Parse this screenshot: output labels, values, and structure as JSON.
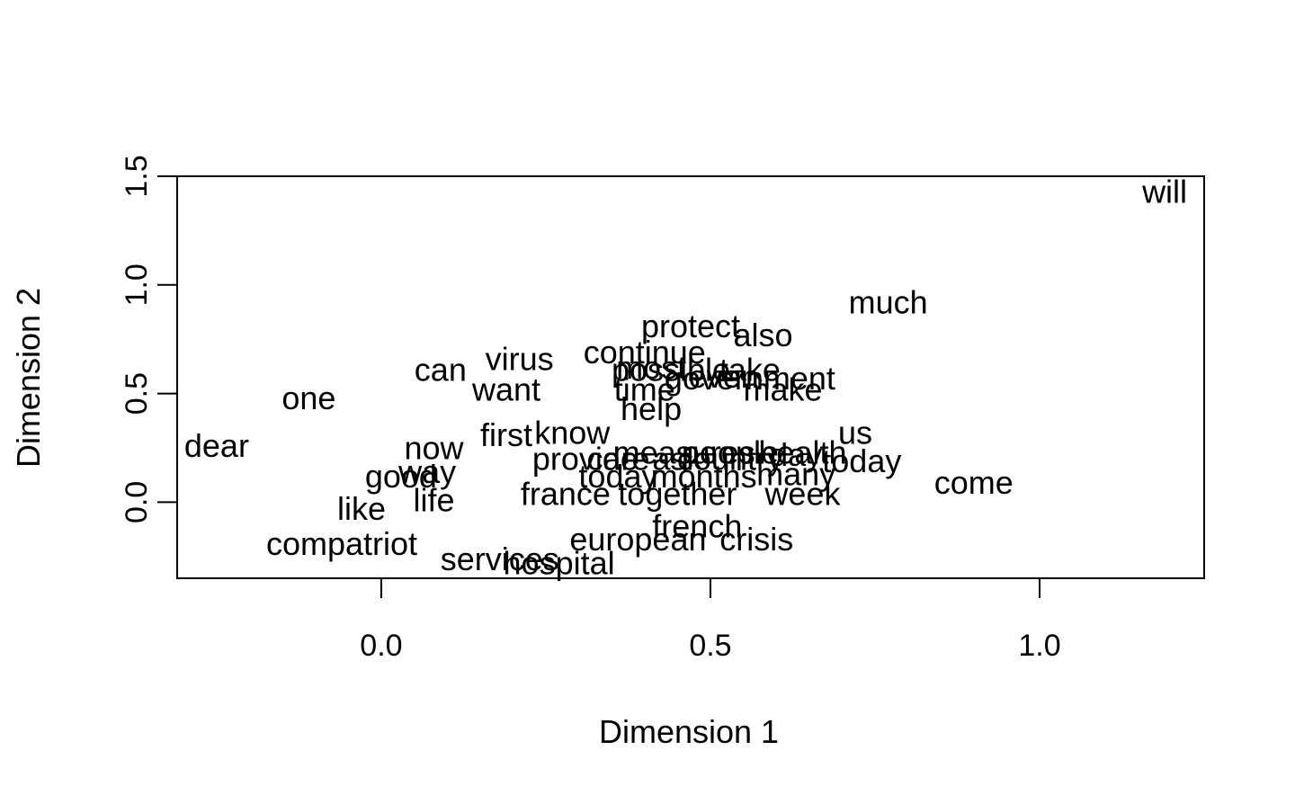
{
  "chart_data": {
    "type": "scatter",
    "title": "",
    "xlabel": "Dimension 1",
    "ylabel": "Dimension 2",
    "xlim": [
      -0.31,
      1.25
    ],
    "ylim": [
      -0.35,
      1.5
    ],
    "xticks": [
      {
        "value": 0.0,
        "label": "0.0"
      },
      {
        "value": 0.5,
        "label": "0.5"
      },
      {
        "value": 1.0,
        "label": "1.0"
      }
    ],
    "yticks": [
      {
        "value": 0.0,
        "label": "0.0"
      },
      {
        "value": 0.5,
        "label": "0.5"
      },
      {
        "value": 1.0,
        "label": "1.0"
      },
      {
        "value": 1.5,
        "label": "1.5"
      }
    ],
    "grid": false,
    "points": [
      {
        "label": "will",
        "x": 1.19,
        "y": 1.43
      },
      {
        "label": "much",
        "x": 0.77,
        "y": 0.92
      },
      {
        "label": "protect",
        "x": 0.47,
        "y": 0.81
      },
      {
        "label": "also",
        "x": 0.58,
        "y": 0.77
      },
      {
        "label": "continue",
        "x": 0.4,
        "y": 0.69
      },
      {
        "label": "virus",
        "x": 0.21,
        "y": 0.66
      },
      {
        "label": "can",
        "x": 0.09,
        "y": 0.61
      },
      {
        "label": "most",
        "x": 0.41,
        "y": 0.62
      },
      {
        "label": "possible",
        "x": 0.44,
        "y": 0.61
      },
      {
        "label": "take",
        "x": 0.56,
        "y": 0.61
      },
      {
        "label": "government",
        "x": 0.56,
        "y": 0.57
      },
      {
        "label": "even",
        "x": 0.52,
        "y": 0.58
      },
      {
        "label": "want",
        "x": 0.19,
        "y": 0.52
      },
      {
        "label": "time",
        "x": 0.4,
        "y": 0.52
      },
      {
        "label": "make",
        "x": 0.61,
        "y": 0.52
      },
      {
        "label": "one",
        "x": -0.11,
        "y": 0.48
      },
      {
        "label": "help",
        "x": 0.41,
        "y": 0.43
      },
      {
        "label": "first",
        "x": 0.19,
        "y": 0.31
      },
      {
        "label": "know",
        "x": 0.29,
        "y": 0.32
      },
      {
        "label": "us",
        "x": 0.72,
        "y": 0.32
      },
      {
        "label": "dear",
        "x": -0.25,
        "y": 0.26
      },
      {
        "label": "now",
        "x": 0.08,
        "y": 0.25
      },
      {
        "label": "measures",
        "x": 0.46,
        "y": 0.23
      },
      {
        "label": "people",
        "x": 0.53,
        "y": 0.23
      },
      {
        "label": "health",
        "x": 0.64,
        "y": 0.23
      },
      {
        "label": "day",
        "x": 0.63,
        "y": 0.22
      },
      {
        "label": "first",
        "x": 0.0,
        "y": 0.0,
        "_omit": true
      },
      {
        "label": "provide",
        "x": 0.31,
        "y": 0.2
      },
      {
        "label": "care",
        "x": 0.36,
        "y": 0.2
      },
      {
        "label": "ask",
        "x": 0.45,
        "y": 0.2
      },
      {
        "label": "country",
        "x": 0.53,
        "y": 0.2
      },
      {
        "label": "today",
        "x": 0.73,
        "y": 0.19
      },
      {
        "label": "way",
        "x": 0.07,
        "y": 0.14
      },
      {
        "label": "good",
        "x": 0.03,
        "y": 0.12
      },
      {
        "label": "today",
        "x": 0.36,
        "y": 0.12
      },
      {
        "label": "months",
        "x": 0.49,
        "y": 0.12
      },
      {
        "label": "many",
        "x": 0.63,
        "y": 0.13
      },
      {
        "label": "life",
        "x": 0.08,
        "y": 0.01
      },
      {
        "label": "france",
        "x": 0.28,
        "y": 0.04
      },
      {
        "label": "together",
        "x": 0.45,
        "y": 0.04
      },
      {
        "label": "week",
        "x": 0.64,
        "y": 0.04
      },
      {
        "label": "come",
        "x": 0.9,
        "y": 0.09
      },
      {
        "label": "like",
        "x": -0.03,
        "y": -0.03
      },
      {
        "label": "french",
        "x": 0.48,
        "y": -0.11
      },
      {
        "label": "european",
        "x": 0.39,
        "y": -0.17
      },
      {
        "label": "crisis",
        "x": 0.57,
        "y": -0.17
      },
      {
        "label": "compatriot",
        "x": -0.06,
        "y": -0.19
      },
      {
        "label": "services",
        "x": 0.18,
        "y": -0.26
      },
      {
        "label": "hospital",
        "x": 0.27,
        "y": -0.28
      }
    ]
  }
}
